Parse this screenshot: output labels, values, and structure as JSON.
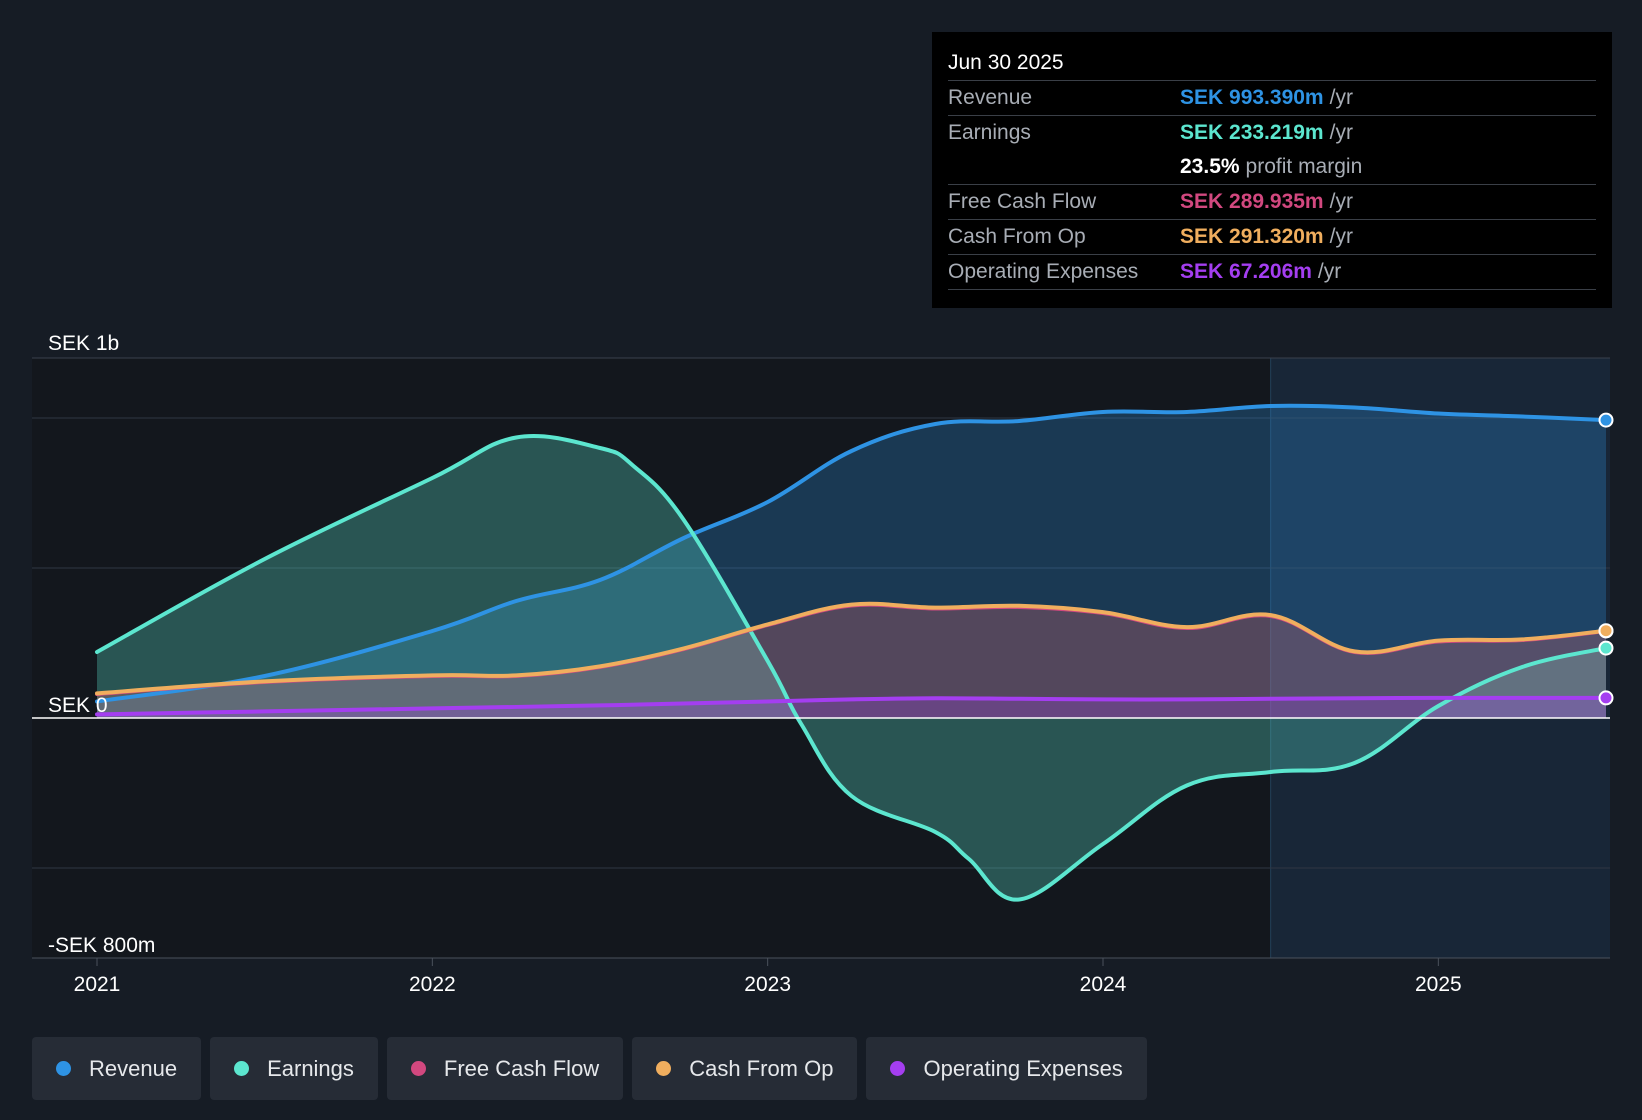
{
  "tooltip": {
    "date": "Jun 30 2025",
    "rows": [
      {
        "label": "Revenue",
        "value": "SEK 993.390m",
        "unit": "/yr",
        "color": "#2e93e4"
      },
      {
        "label": "Earnings",
        "value": "SEK 233.219m",
        "unit": "/yr",
        "color": "#5ce6cf"
      },
      {
        "label": "",
        "value": "23.5%",
        "unit": "profit margin",
        "color": "#ffffff"
      },
      {
        "label": "Free Cash Flow",
        "value": "SEK 289.935m",
        "unit": "/yr",
        "color": "#d2487f"
      },
      {
        "label": "Cash From Op",
        "value": "SEK 291.320m",
        "unit": "/yr",
        "color": "#f0ae5e"
      },
      {
        "label": "Operating Expenses",
        "value": "SEK 67.206m",
        "unit": "/yr",
        "color": "#a43ef0"
      }
    ]
  },
  "legend": [
    {
      "label": "Revenue",
      "color": "#2e93e4"
    },
    {
      "label": "Earnings",
      "color": "#5ce6cf"
    },
    {
      "label": "Free Cash Flow",
      "color": "#d2487f"
    },
    {
      "label": "Cash From Op",
      "color": "#f0ae5e"
    },
    {
      "label": "Operating Expenses",
      "color": "#a43ef0"
    }
  ],
  "chart_data": {
    "type": "area",
    "title": "",
    "ylabel": "SEK",
    "ylim": [
      -800,
      1200
    ],
    "y_tick_labels": [
      {
        "value": 1200,
        "label": "SEK 1b"
      },
      {
        "value": 0,
        "label": "SEK 0"
      },
      {
        "value": -800,
        "label": "-SEK 800m"
      }
    ],
    "gridlines": [
      1000,
      500,
      0,
      -500
    ],
    "x_ticks": [
      {
        "value": 2021.0,
        "label": "2021"
      },
      {
        "value": 2022.0,
        "label": "2022"
      },
      {
        "value": 2023.0,
        "label": "2023"
      },
      {
        "value": 2024.0,
        "label": "2024"
      },
      {
        "value": 2025.0,
        "label": "2025"
      }
    ],
    "xlim": [
      2020.81,
      2025.5
    ],
    "forecast_start": 2024.5,
    "series": [
      {
        "name": "Revenue",
        "color": "#2e93e4",
        "x": [
          2021.0,
          2021.5,
          2022.0,
          2022.25,
          2022.5,
          2022.75,
          2023.0,
          2023.25,
          2023.5,
          2023.75,
          2024.0,
          2024.25,
          2024.5,
          2024.75,
          2025.0,
          2025.25,
          2025.5
        ],
        "y": [
          55,
          140,
          290,
          390,
          460,
          600,
          720,
          890,
          980,
          990,
          1020,
          1020,
          1040,
          1035,
          1015,
          1005,
          993
        ]
      },
      {
        "name": "Earnings",
        "color": "#5ce6cf",
        "x": [
          2021.0,
          2021.5,
          2022.0,
          2022.25,
          2022.5,
          2022.6,
          2022.75,
          2023.0,
          2023.1,
          2023.25,
          2023.5,
          2023.6,
          2023.75,
          2024.0,
          2024.25,
          2024.5,
          2024.75,
          2025.0,
          2025.25,
          2025.5
        ],
        "y": [
          220,
          530,
          800,
          935,
          900,
          840,
          660,
          190,
          -20,
          -260,
          -380,
          -470,
          -605,
          -420,
          -225,
          -180,
          -150,
          40,
          170,
          233
        ]
      },
      {
        "name": "Free Cash Flow",
        "color": "#d2487f",
        "x": [
          2021.0,
          2021.5,
          2022.0,
          2022.25,
          2022.5,
          2022.75,
          2023.0,
          2023.25,
          2023.5,
          2023.75,
          2024.0,
          2024.25,
          2024.5,
          2024.75,
          2025.0,
          2025.25,
          2025.5
        ],
        "y": [
          80,
          120,
          140,
          140,
          170,
          230,
          310,
          375,
          365,
          370,
          350,
          300,
          340,
          220,
          255,
          260,
          290
        ]
      },
      {
        "name": "Cash From Op",
        "color": "#f0ae5e",
        "x": [
          2021.0,
          2021.5,
          2022.0,
          2022.25,
          2022.5,
          2022.75,
          2023.0,
          2023.25,
          2023.5,
          2023.75,
          2024.0,
          2024.25,
          2024.5,
          2024.75,
          2025.0,
          2025.25,
          2025.5
        ],
        "y": [
          82,
          122,
          142,
          142,
          172,
          232,
          312,
          378,
          368,
          374,
          353,
          303,
          343,
          222,
          258,
          262,
          291
        ]
      },
      {
        "name": "Operating Expenses",
        "color": "#a43ef0",
        "x": [
          2021.0,
          2021.5,
          2022.0,
          2022.5,
          2023.0,
          2023.25,
          2023.5,
          2023.75,
          2024.0,
          2024.25,
          2024.5,
          2024.75,
          2025.0,
          2025.25,
          2025.5
        ],
        "y": [
          12,
          22,
          32,
          42,
          55,
          62,
          66,
          64,
          62,
          62,
          64,
          66,
          67,
          67,
          67
        ]
      }
    ]
  }
}
